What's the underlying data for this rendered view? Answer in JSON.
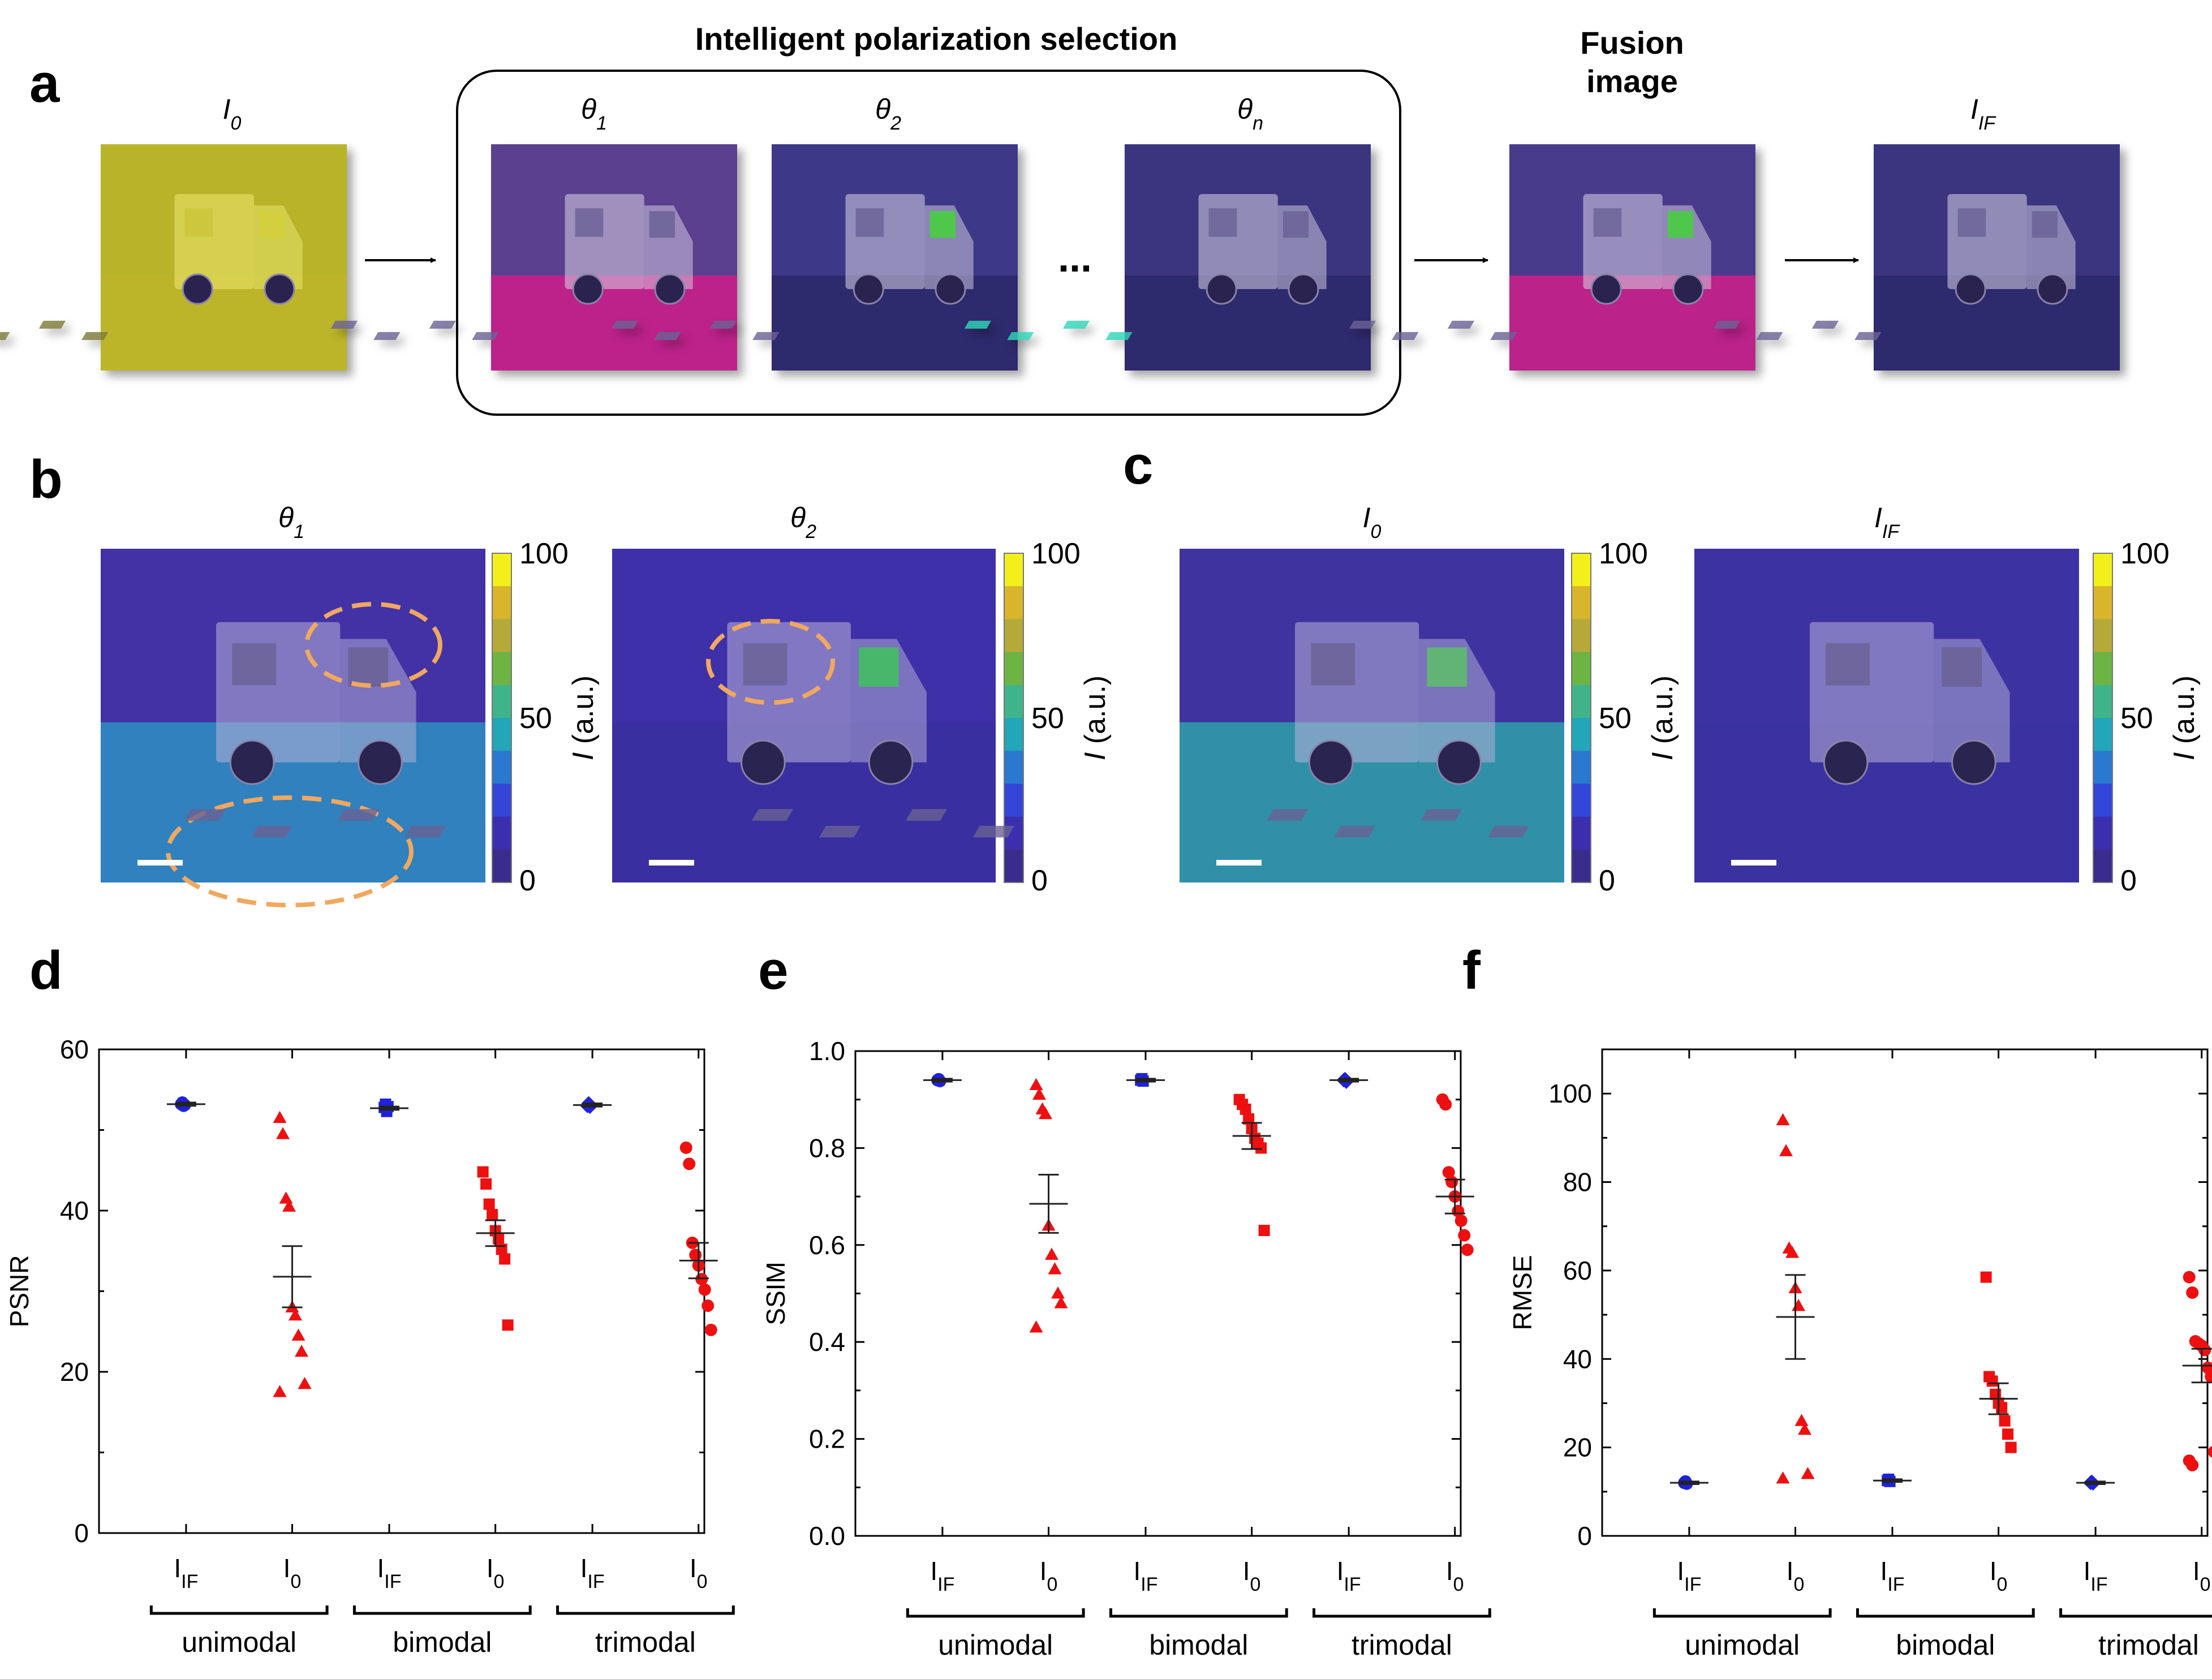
{
  "panel_a": {
    "letter": "a",
    "title": "Intelligent polarization selection",
    "fusion_title": "Fusion image",
    "fusion_title_lines": [
      "Fusion",
      "image"
    ],
    "images": [
      {
        "label_main": "I",
        "label_sub": "0",
        "tint": "#b8b42a"
      },
      {
        "label_main": "θ",
        "label_sub": "1",
        "tint": "#5a3f8e",
        "floor": "#c8208a"
      },
      {
        "label_main": "θ",
        "label_sub": "2",
        "tint": "#3c3887",
        "accent": "#44d23a"
      },
      {
        "label_main": "θ",
        "label_sub": "n",
        "tint": "#3a3480",
        "accent": "#2fd6b8"
      },
      {
        "label_main": "",
        "label_sub": "",
        "tint": "#4a3a8c",
        "floor": "#c8208a",
        "accent": "#44d23a"
      },
      {
        "label_main": "I",
        "label_sub": "IF",
        "tint": "#3a3480"
      }
    ],
    "ellipsis": "..."
  },
  "panel_b": {
    "letter": "b",
    "images": [
      {
        "label_main": "θ",
        "label_sub": "1"
      },
      {
        "label_main": "θ",
        "label_sub": "2"
      }
    ]
  },
  "panel_c": {
    "letter": "c",
    "images": [
      {
        "label_main": "I",
        "label_sub": "0"
      },
      {
        "label_main": "I",
        "label_sub": "IF"
      }
    ]
  },
  "colorbar": {
    "ticks": [
      "100",
      "50",
      "0"
    ],
    "label": "I (a.u.)",
    "label_main": "I",
    "label_unit": " (a.u.)",
    "colors": [
      "#f2ef1a",
      "#d8b52a",
      "#b5a93a",
      "#6cb443",
      "#3fb48a",
      "#22a6b8",
      "#2a78d0",
      "#3346d8",
      "#3b2fb0",
      "#3a2c8c"
    ]
  },
  "colors": {
    "blue": "#1f22d8",
    "red": "#ee1010",
    "scalebar": "#ffffff",
    "dashed": "#f0a860"
  },
  "chart_data": [
    {
      "panel": "d",
      "type": "scatter",
      "ylabel": "PSNR",
      "ylim": [
        0,
        60
      ],
      "yticks": [
        "0",
        "20",
        "40",
        "60"
      ],
      "ytick_values": [
        0,
        20,
        40,
        60
      ],
      "groups": [
        "unimodal",
        "bimodal",
        "trimodal"
      ],
      "xtick_main": "I",
      "xtick_subs": [
        "IF",
        "0"
      ],
      "series": [
        {
          "name": "IIF",
          "color": "#1f22d8",
          "groups": [
            {
              "marker": "circle",
              "points": [
                53.2,
                53.4,
                53.0,
                53.1
              ],
              "mean": 53.2,
              "sem": 0.2
            },
            {
              "marker": "square",
              "points": [
                52.8,
                53.2,
                52.3,
                52.9
              ],
              "mean": 52.7,
              "sem": 0.2
            },
            {
              "marker": "diamond",
              "points": [
                53.0,
                53.3,
                52.9
              ],
              "mean": 53.1,
              "sem": 0.2
            }
          ]
        },
        {
          "name": "I0",
          "color": "#ee1010",
          "groups": [
            {
              "marker": "triangle",
              "points": [
                51.5,
                49.5,
                41.5,
                40.5,
                28.0,
                27.0,
                24.5,
                22.5,
                18.5,
                17.5
              ],
              "mean": 31.8,
              "sem": 3.8
            },
            {
              "marker": "square",
              "points": [
                44.8,
                43.3,
                40.8,
                39.5,
                37.5,
                36.5,
                35.2,
                34.0,
                25.8
              ],
              "mean": 37.2,
              "sem": 1.6
            },
            {
              "marker": "circle",
              "points": [
                47.8,
                45.8,
                36.0,
                34.5,
                33.2,
                31.5,
                30.2,
                28.2,
                25.2
              ],
              "mean": 33.8,
              "sem": 2.2
            }
          ]
        }
      ]
    },
    {
      "panel": "e",
      "type": "scatter",
      "ylabel": "SSIM",
      "ylim": [
        0,
        1.0
      ],
      "yticks": [
        "0.0",
        "0.2",
        "0.4",
        "0.6",
        "0.8",
        "1.0"
      ],
      "ytick_values": [
        0,
        0.2,
        0.4,
        0.6,
        0.8,
        1.0
      ],
      "groups": [
        "unimodal",
        "bimodal",
        "trimodal"
      ],
      "xtick_main": "I",
      "xtick_subs": [
        "IF",
        "0"
      ],
      "series": [
        {
          "name": "IIF",
          "color": "#1f22d8",
          "groups": [
            {
              "marker": "circle",
              "points": [
                0.94,
                0.942,
                0.938
              ],
              "mean": 0.94,
              "sem": 0.003
            },
            {
              "marker": "square",
              "points": [
                0.94,
                0.943,
                0.938
              ],
              "mean": 0.94,
              "sem": 0.003
            },
            {
              "marker": "diamond",
              "points": [
                0.94,
                0.942,
                0.937
              ],
              "mean": 0.94,
              "sem": 0.003
            }
          ]
        },
        {
          "name": "I0",
          "color": "#ee1010",
          "groups": [
            {
              "marker": "triangle",
              "points": [
                0.93,
                0.91,
                0.88,
                0.87,
                0.64,
                0.58,
                0.55,
                0.5,
                0.48,
                0.43
              ],
              "mean": 0.685,
              "sem": 0.06
            },
            {
              "marker": "square",
              "points": [
                0.9,
                0.89,
                0.88,
                0.86,
                0.84,
                0.82,
                0.81,
                0.8,
                0.63
              ],
              "mean": 0.825,
              "sem": 0.027
            },
            {
              "marker": "circle",
              "points": [
                0.9,
                0.89,
                0.75,
                0.73,
                0.7,
                0.67,
                0.65,
                0.62,
                0.59
              ],
              "mean": 0.7,
              "sem": 0.035
            }
          ]
        }
      ]
    },
    {
      "panel": "f",
      "type": "scatter",
      "ylabel": "RMSE",
      "ylim": [
        0,
        110
      ],
      "yticks": [
        "0",
        "20",
        "40",
        "60",
        "80",
        "100"
      ],
      "ytick_values": [
        0,
        20,
        40,
        60,
        80,
        100
      ],
      "groups": [
        "unimodal",
        "bimodal",
        "trimodal"
      ],
      "xtick_main": "I",
      "xtick_subs": [
        "IF",
        "0"
      ],
      "series": [
        {
          "name": "IIF",
          "color": "#1f22d8",
          "groups": [
            {
              "marker": "circle",
              "points": [
                12.0,
                12.3,
                11.8
              ],
              "mean": 12.0,
              "sem": 0.3
            },
            {
              "marker": "square",
              "points": [
                12.5,
                12.8,
                12.3
              ],
              "mean": 12.5,
              "sem": 0.3
            },
            {
              "marker": "diamond",
              "points": [
                12.0,
                12.2,
                11.9
              ],
              "mean": 12.0,
              "sem": 0.3
            }
          ]
        },
        {
          "name": "I0",
          "color": "#ee1010",
          "groups": [
            {
              "marker": "triangle",
              "points": [
                94.0,
                87.0,
                65.0,
                64.0,
                56.0,
                52.0,
                26.0,
                24.0,
                14.0,
                13.0
              ],
              "mean": 49.5,
              "sem": 9.5
            },
            {
              "marker": "square",
              "points": [
                58.5,
                36.0,
                35.0,
                32.0,
                30.0,
                29.0,
                26.0,
                23.0,
                20.0
              ],
              "mean": 31.0,
              "sem": 3.5
            },
            {
              "marker": "circle",
              "points": [
                58.5,
                55.0,
                44.0,
                43.5,
                43.0,
                42.0,
                38.0,
                36.0,
                19.0,
                17.0,
                16.0
              ],
              "mean": 38.5,
              "sem": 3.8
            }
          ]
        }
      ]
    }
  ]
}
